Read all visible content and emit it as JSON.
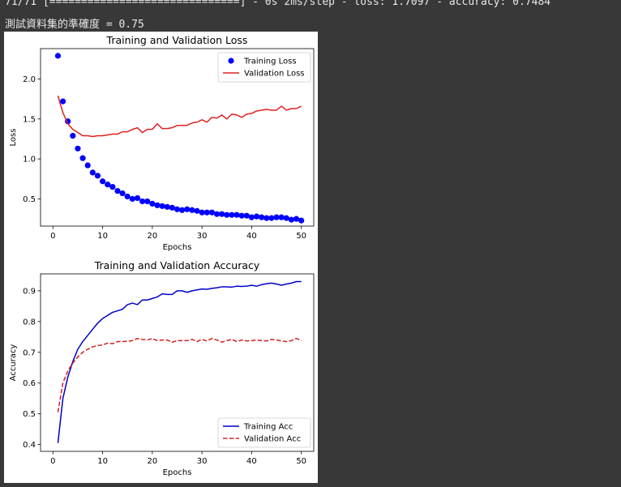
{
  "console": {
    "progress_line": "71/71 [==============================] - 0s 2ms/step - loss: 1.7097 - accuracy: 0.7484",
    "result_line": "測試資料集的準確度 = 0.75"
  },
  "chart_data": [
    {
      "type": "line",
      "title": "Training and Validation Loss",
      "xlabel": "Epochs",
      "ylabel": "Loss",
      "xlim": [
        -2.5,
        52.5
      ],
      "ylim": [
        0.16,
        2.38
      ],
      "xticks": [
        0,
        10,
        20,
        30,
        40,
        50
      ],
      "yticks": [
        0.5,
        1.0,
        1.5,
        2.0
      ],
      "legend": "top-right",
      "series": [
        {
          "name": "Training Loss",
          "style": "markers",
          "color": "#0000ff",
          "x": [
            1,
            2,
            3,
            4,
            5,
            6,
            7,
            8,
            9,
            10,
            11,
            12,
            13,
            14,
            15,
            16,
            17,
            18,
            19,
            20,
            21,
            22,
            23,
            24,
            25,
            26,
            27,
            28,
            29,
            30,
            31,
            32,
            33,
            34,
            35,
            36,
            37,
            38,
            39,
            40,
            41,
            42,
            43,
            44,
            45,
            46,
            47,
            48,
            49,
            50
          ],
          "values": [
            2.29,
            1.72,
            1.47,
            1.29,
            1.13,
            1.01,
            0.92,
            0.83,
            0.79,
            0.72,
            0.68,
            0.65,
            0.6,
            0.57,
            0.53,
            0.5,
            0.51,
            0.47,
            0.47,
            0.44,
            0.42,
            0.41,
            0.4,
            0.39,
            0.37,
            0.36,
            0.37,
            0.36,
            0.35,
            0.33,
            0.33,
            0.33,
            0.31,
            0.31,
            0.3,
            0.3,
            0.3,
            0.29,
            0.29,
            0.27,
            0.28,
            0.27,
            0.26,
            0.26,
            0.27,
            0.27,
            0.26,
            0.24,
            0.25,
            0.23
          ]
        },
        {
          "name": "Validation Loss",
          "style": "solid",
          "color": "#e02020",
          "x": [
            1,
            2,
            3,
            4,
            5,
            6,
            7,
            8,
            9,
            10,
            11,
            12,
            13,
            14,
            15,
            16,
            17,
            18,
            19,
            20,
            21,
            22,
            23,
            24,
            25,
            26,
            27,
            28,
            29,
            30,
            31,
            32,
            33,
            34,
            35,
            36,
            37,
            38,
            39,
            40,
            41,
            42,
            43,
            44,
            45,
            46,
            47,
            48,
            49,
            50
          ],
          "values": [
            1.79,
            1.58,
            1.44,
            1.37,
            1.33,
            1.29,
            1.29,
            1.28,
            1.29,
            1.29,
            1.3,
            1.31,
            1.31,
            1.34,
            1.34,
            1.37,
            1.39,
            1.33,
            1.37,
            1.37,
            1.44,
            1.38,
            1.38,
            1.39,
            1.42,
            1.42,
            1.42,
            1.45,
            1.46,
            1.49,
            1.46,
            1.52,
            1.51,
            1.55,
            1.5,
            1.56,
            1.55,
            1.52,
            1.56,
            1.57,
            1.6,
            1.61,
            1.62,
            1.61,
            1.61,
            1.66,
            1.61,
            1.63,
            1.63,
            1.66
          ]
        }
      ]
    },
    {
      "type": "line",
      "title": "Training and Validation Accuracy",
      "xlabel": "Epochs",
      "ylabel": "Accuracy",
      "xlim": [
        -2.5,
        52.5
      ],
      "ylim": [
        0.378,
        0.955
      ],
      "xticks": [
        0,
        10,
        20,
        30,
        40,
        50
      ],
      "yticks": [
        0.4,
        0.5,
        0.6,
        0.7,
        0.8,
        0.9
      ],
      "legend": "bottom-right",
      "series": [
        {
          "name": "Training Acc",
          "style": "solid",
          "color": "#0000cc",
          "x": [
            1,
            2,
            3,
            4,
            5,
            6,
            7,
            8,
            9,
            10,
            11,
            12,
            13,
            14,
            15,
            16,
            17,
            18,
            19,
            20,
            21,
            22,
            23,
            24,
            25,
            26,
            27,
            28,
            29,
            30,
            31,
            32,
            33,
            34,
            35,
            36,
            37,
            38,
            39,
            40,
            41,
            42,
            43,
            44,
            45,
            46,
            47,
            48,
            49,
            50
          ],
          "values": [
            0.405,
            0.55,
            0.62,
            0.67,
            0.71,
            0.735,
            0.755,
            0.775,
            0.795,
            0.81,
            0.82,
            0.83,
            0.835,
            0.84,
            0.855,
            0.86,
            0.855,
            0.87,
            0.87,
            0.875,
            0.88,
            0.89,
            0.888,
            0.888,
            0.9,
            0.9,
            0.895,
            0.9,
            0.903,
            0.906,
            0.905,
            0.908,
            0.91,
            0.913,
            0.913,
            0.912,
            0.915,
            0.914,
            0.915,
            0.918,
            0.915,
            0.92,
            0.923,
            0.925,
            0.922,
            0.918,
            0.922,
            0.925,
            0.93,
            0.93
          ]
        },
        {
          "name": "Validation Acc",
          "style": "dashed",
          "color": "#d42020",
          "x": [
            1,
            2,
            3,
            4,
            5,
            6,
            7,
            8,
            9,
            10,
            11,
            12,
            13,
            14,
            15,
            16,
            17,
            18,
            19,
            20,
            21,
            22,
            23,
            24,
            25,
            26,
            27,
            28,
            29,
            30,
            31,
            32,
            33,
            34,
            35,
            36,
            37,
            38,
            39,
            40,
            41,
            42,
            43,
            44,
            45,
            46,
            47,
            48,
            49,
            50
          ],
          "values": [
            0.505,
            0.6,
            0.64,
            0.665,
            0.685,
            0.7,
            0.71,
            0.718,
            0.722,
            0.724,
            0.73,
            0.728,
            0.735,
            0.735,
            0.736,
            0.738,
            0.745,
            0.742,
            0.74,
            0.745,
            0.738,
            0.74,
            0.74,
            0.733,
            0.738,
            0.738,
            0.738,
            0.742,
            0.735,
            0.742,
            0.737,
            0.745,
            0.74,
            0.733,
            0.738,
            0.742,
            0.735,
            0.74,
            0.737,
            0.738,
            0.74,
            0.738,
            0.737,
            0.742,
            0.74,
            0.737,
            0.735,
            0.738,
            0.745,
            0.738
          ]
        }
      ]
    }
  ]
}
